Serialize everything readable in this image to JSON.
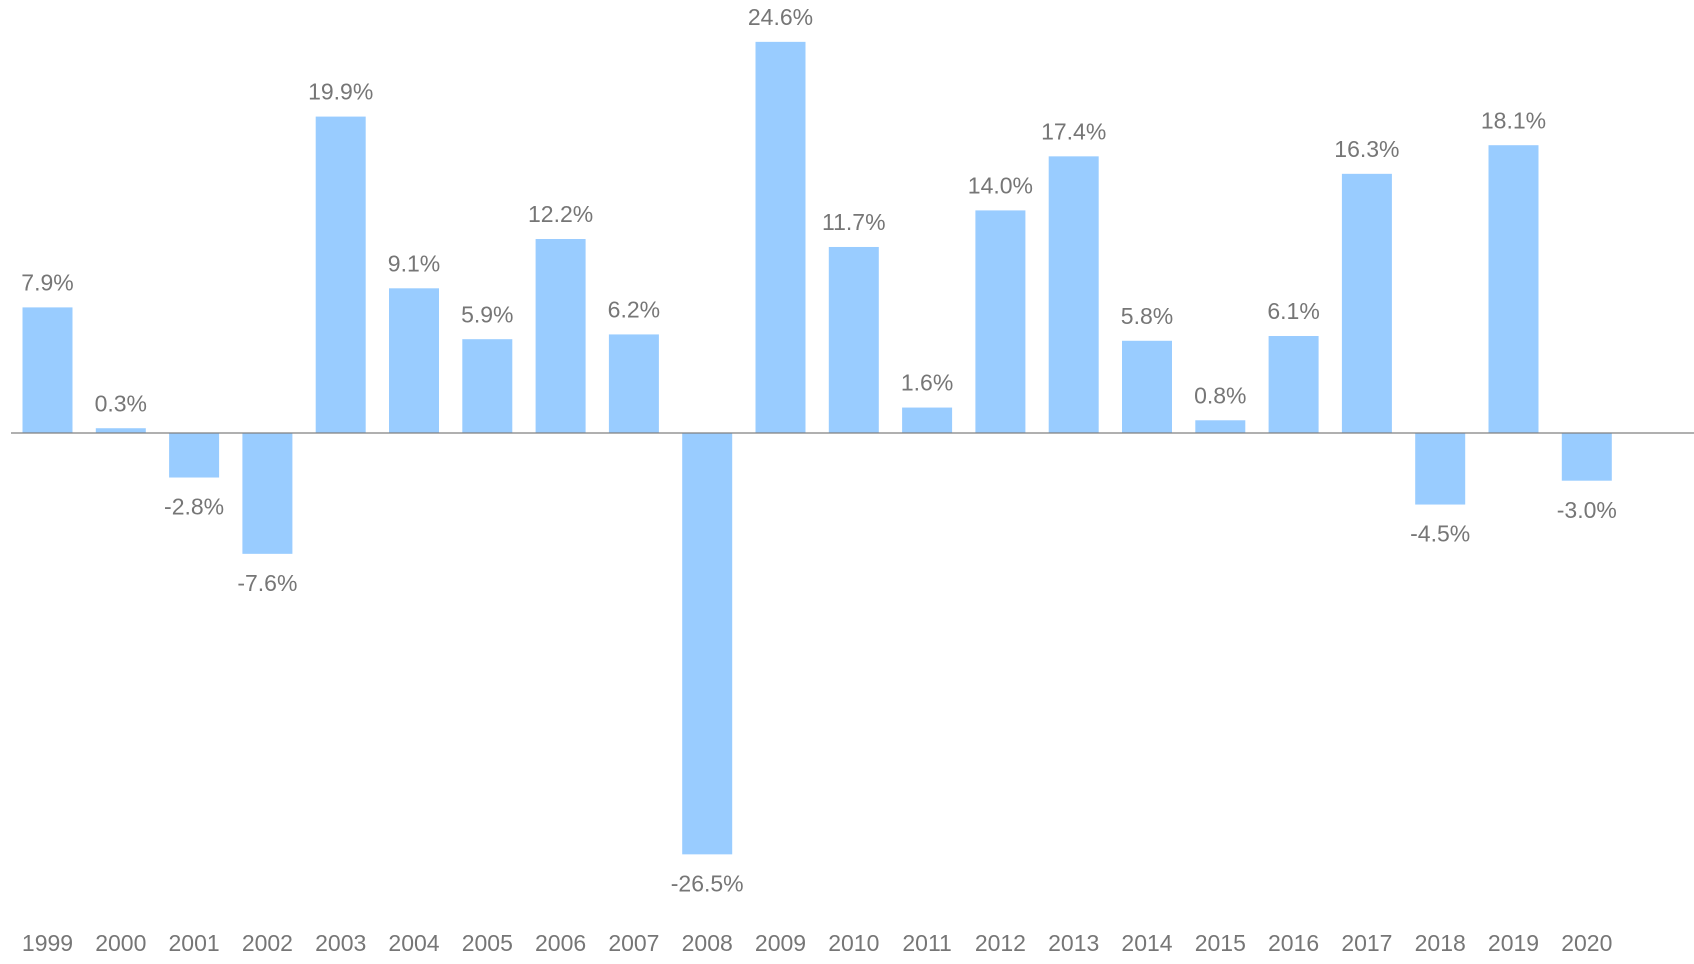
{
  "chart_data": {
    "type": "bar",
    "categories": [
      "1999",
      "2000",
      "2001",
      "2002",
      "2003",
      "2004",
      "2005",
      "2006",
      "2007",
      "2008",
      "2009",
      "2010",
      "2011",
      "2012",
      "2013",
      "2014",
      "2015",
      "2016",
      "2017",
      "2018",
      "2019",
      "2020"
    ],
    "values": [
      7.9,
      0.3,
      -2.8,
      -7.6,
      19.9,
      9.1,
      5.9,
      12.2,
      6.2,
      -26.5,
      24.6,
      11.7,
      1.6,
      14.0,
      17.4,
      5.8,
      0.8,
      6.1,
      16.3,
      -4.5,
      18.1,
      -3.0
    ],
    "value_labels": [
      "7.9%",
      "0.3%",
      "-2.8%",
      "-7.6%",
      "19.9%",
      "9.1%",
      "5.9%",
      "12.2%",
      "6.2%",
      "-26.5%",
      "24.6%",
      "11.7%",
      "1.6%",
      "14.0%",
      "17.4%",
      "5.8%",
      "0.8%",
      "6.1%",
      "16.3%",
      "-4.5%",
      "18.1%",
      "-3.0%"
    ],
    "color": "#99ccff"
  }
}
